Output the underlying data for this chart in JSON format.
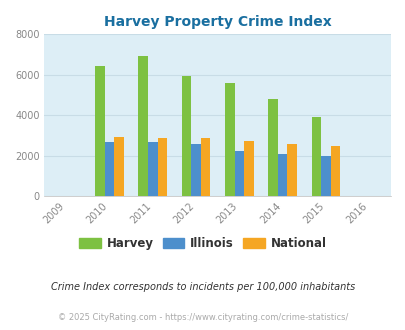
{
  "title": "Harvey Property Crime Index",
  "x_labels": [
    "2009",
    "2010",
    "2011",
    "2012",
    "2013",
    "2014",
    "2015",
    "2016"
  ],
  "harvey_vals": [
    0,
    6450,
    6950,
    5950,
    5600,
    4800,
    3900,
    0
  ],
  "illinois_vals": [
    0,
    2680,
    2700,
    2600,
    2250,
    2080,
    2020,
    0
  ],
  "national_vals": [
    0,
    2950,
    2900,
    2900,
    2750,
    2600,
    2470,
    0
  ],
  "harvey_color": "#7dc142",
  "illinois_color": "#4d8fcc",
  "national_color": "#f5a623",
  "bg_color": "#ddeef6",
  "ylim": [
    0,
    8000
  ],
  "yticks": [
    0,
    2000,
    4000,
    6000,
    8000
  ],
  "footnote1": "Crime Index corresponds to incidents per 100,000 inhabitants",
  "footnote2": "© 2025 CityRating.com - https://www.cityrating.com/crime-statistics/",
  "legend_labels": [
    "Harvey",
    "Illinois",
    "National"
  ],
  "bar_width": 0.22,
  "title_color": "#1a6fa0",
  "tick_color": "#888888",
  "footnote1_color": "#333333",
  "footnote2_color": "#aaaaaa",
  "grid_color": "#c8dce6"
}
